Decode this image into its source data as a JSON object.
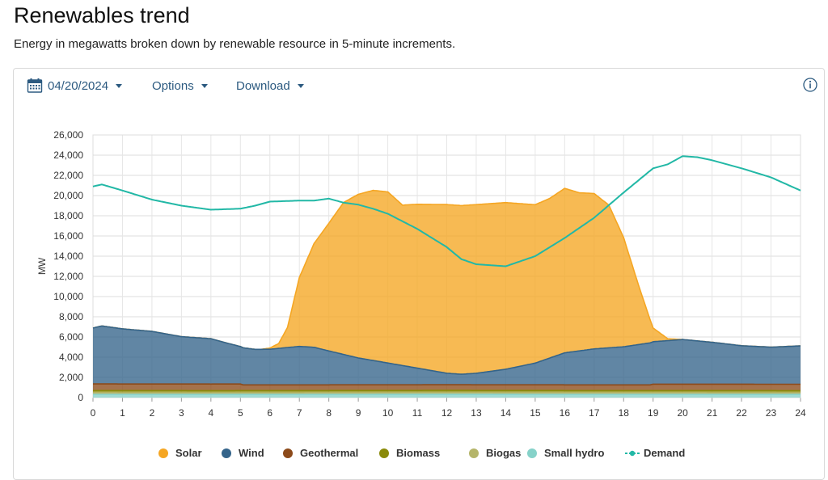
{
  "page": {
    "title": "Renewables trend",
    "subtitle": "Energy in megawatts broken down by renewable resource in 5-minute increments."
  },
  "toolbar": {
    "date_label": "04/20/2024",
    "date_icon": "calendar-icon",
    "options_label": "Options",
    "download_label": "Download",
    "info_icon": "info-icon"
  },
  "colors": {
    "solar": "#F5A623",
    "wind": "#34648A",
    "geothermal": "#8C4A1A",
    "biomass": "#8A8A0A",
    "biogas": "#B5B56A",
    "small_hydro": "#86D2C9",
    "demand": "#22B8A6",
    "accent": "#2c5a80"
  },
  "chart_data": {
    "type": "area",
    "title": "",
    "xlabel": "",
    "ylabel": "MW",
    "xlim": [
      0,
      24
    ],
    "ylim": [
      0,
      26000
    ],
    "x_ticks": [
      "0",
      "1",
      "2",
      "3",
      "4",
      "5",
      "6",
      "7",
      "8",
      "9",
      "10",
      "11",
      "12",
      "13",
      "14",
      "15",
      "16",
      "17",
      "18",
      "19",
      "20",
      "21",
      "22",
      "23",
      "24"
    ],
    "y_ticks": [
      "0",
      "2,000",
      "4,000",
      "6,000",
      "8,000",
      "10,000",
      "12,000",
      "14,000",
      "16,000",
      "18,000",
      "20,000",
      "22,000",
      "24,000",
      "26,000"
    ],
    "grid": true,
    "legend_position": "bottom",
    "stacked": true,
    "series": [
      {
        "name": "Small hydro",
        "color_key": "small_hydro",
        "type": "area",
        "x": [
          0,
          4,
          8,
          12,
          16,
          20,
          24
        ],
        "values": [
          320,
          310,
          320,
          330,
          320,
          320,
          310
        ]
      },
      {
        "name": "Biogas",
        "color_key": "biogas",
        "type": "area",
        "x": [
          0,
          12,
          24
        ],
        "values": [
          150,
          150,
          150
        ]
      },
      {
        "name": "Biomass",
        "color_key": "biomass",
        "type": "area",
        "x": [
          0,
          12,
          24
        ],
        "values": [
          230,
          230,
          230
        ]
      },
      {
        "name": "Geothermal",
        "color_key": "geothermal",
        "type": "area",
        "x": [
          0,
          5,
          5.1,
          12,
          18.9,
          19,
          24
        ],
        "values": [
          650,
          650,
          560,
          560,
          560,
          630,
          630
        ]
      },
      {
        "name": "Wind",
        "color_key": "wind",
        "type": "area",
        "x": [
          0,
          0.3,
          1,
          2,
          3,
          3.5,
          4,
          4.5,
          5,
          5.5,
          6,
          7,
          7.5,
          8,
          9,
          10,
          11,
          12,
          12.5,
          13,
          14,
          15,
          16,
          17,
          18,
          19,
          20,
          21,
          22,
          23,
          24
        ],
        "values": [
          5540,
          5740,
          5460,
          5210,
          4690,
          4590,
          4490,
          4090,
          3710,
          3520,
          3530,
          3810,
          3720,
          3360,
          2660,
          2160,
          1650,
          1140,
          1040,
          1140,
          1540,
          2150,
          3170,
          3560,
          3770,
          4200,
          4420,
          4150,
          3810,
          3670,
          3800
        ]
      },
      {
        "name": "Solar",
        "color_key": "solar",
        "type": "area",
        "x": [
          0,
          5.7,
          6,
          6.3,
          6.6,
          7,
          7.5,
          8,
          8.5,
          9,
          9.5,
          10,
          10.5,
          11,
          12,
          13,
          14,
          15,
          15.5,
          16,
          16.5,
          17,
          17.5,
          18,
          18.5,
          19,
          19.5,
          20,
          24
        ],
        "values": [
          0,
          0,
          120,
          480,
          2000,
          6820,
          10280,
          12640,
          15040,
          16200,
          16840,
          16940,
          15880,
          16220,
          16700,
          16700,
          16500,
          15680,
          15810,
          16280,
          15650,
          15380,
          14130,
          10800,
          5930,
          1360,
          180,
          0,
          0
        ]
      },
      {
        "name": "Demand",
        "color_key": "demand",
        "type": "line",
        "stacked": false,
        "x": [
          0,
          0.3,
          1,
          2,
          3,
          4,
          5,
          5.5,
          6,
          7,
          7.5,
          8,
          8.5,
          9,
          9.5,
          10,
          11,
          12,
          12.5,
          13,
          14,
          15,
          16,
          17,
          18,
          19,
          19.5,
          20,
          20.5,
          21,
          22,
          23,
          24
        ],
        "values": [
          20900,
          21100,
          20500,
          19600,
          19000,
          18600,
          18700,
          19000,
          19400,
          19500,
          19500,
          19700,
          19300,
          19100,
          18700,
          18200,
          16700,
          14900,
          13700,
          13200,
          13000,
          14000,
          15800,
          17800,
          20300,
          22700,
          23100,
          23900,
          23800,
          23500,
          22700,
          21800,
          20500
        ]
      }
    ]
  },
  "legend": {
    "items": [
      {
        "label": "Solar",
        "color_key": "solar",
        "style": "dot"
      },
      {
        "label": "Wind",
        "color_key": "wind",
        "style": "dot"
      },
      {
        "label": "Geothermal",
        "color_key": "geothermal",
        "style": "dot"
      },
      {
        "label": "Biomass",
        "color_key": "biomass",
        "style": "dot"
      },
      {
        "label": "Biogas",
        "color_key": "biogas",
        "style": "dot"
      },
      {
        "label": "Small hydro",
        "color_key": "small_hydro",
        "style": "dot"
      },
      {
        "label": "Demand",
        "color_key": "demand",
        "style": "line-dot"
      }
    ]
  }
}
